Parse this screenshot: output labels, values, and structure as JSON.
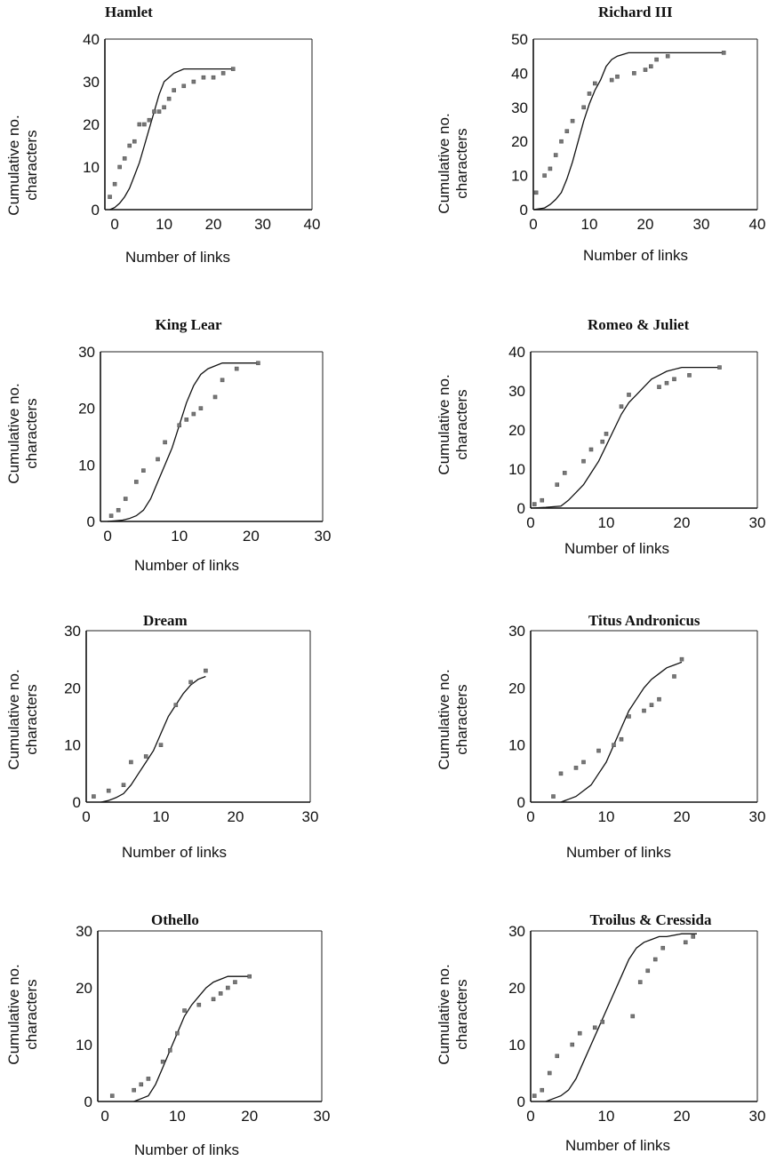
{
  "chart_data": [
    {
      "type": "scatter",
      "title": "Hamlet",
      "xlabel": "Number of links",
      "ylabel": [
        "Cumulative no.",
        "characters"
      ],
      "xlim": [
        -2,
        40
      ],
      "ylim": [
        0,
        40
      ],
      "xticks": [
        0,
        10,
        20,
        30,
        40
      ],
      "yticks": [
        0,
        10,
        20,
        30,
        40
      ],
      "series": [
        {
          "kind": "points",
          "x": [
            -1,
            0,
            1,
            2,
            3,
            4,
            5,
            6,
            7,
            8,
            9,
            10,
            11,
            12,
            14,
            16,
            18,
            20,
            22,
            24
          ],
          "y": [
            3,
            6,
            10,
            12,
            15,
            16,
            20,
            20,
            21,
            23,
            23,
            24,
            26,
            28,
            29,
            30,
            31,
            31,
            32,
            33
          ]
        },
        {
          "kind": "curve",
          "x": [
            -1,
            0,
            1,
            2,
            3,
            4,
            5,
            6,
            7,
            8,
            9,
            10,
            11,
            12,
            14,
            16,
            18,
            20,
            22,
            24
          ],
          "y": [
            0,
            0.5,
            1.5,
            3,
            5,
            8,
            11,
            15,
            19,
            23,
            27,
            30,
            31,
            32,
            33,
            33,
            33,
            33,
            33,
            33
          ]
        }
      ]
    },
    {
      "type": "scatter",
      "title": "Richard III",
      "xlabel": "Number of links",
      "ylabel": [
        "Cumulative no.",
        "characters"
      ],
      "xlim": [
        0,
        40
      ],
      "ylim": [
        0,
        50
      ],
      "xticks": [
        0,
        10,
        20,
        30,
        40
      ],
      "yticks": [
        0,
        10,
        20,
        30,
        40,
        50
      ],
      "series": [
        {
          "kind": "points",
          "x": [
            0.5,
            2,
            3,
            4,
            5,
            6,
            7,
            9,
            10,
            11,
            14,
            15,
            18,
            20,
            21,
            22,
            24,
            34
          ],
          "y": [
            5,
            10,
            12,
            16,
            20,
            23,
            26,
            30,
            34,
            37,
            38,
            39,
            40,
            41,
            42,
            44,
            45,
            46
          ]
        },
        {
          "kind": "curve",
          "x": [
            0,
            2,
            3,
            4,
            5,
            6,
            7,
            8,
            9,
            10,
            11,
            12,
            13,
            14,
            15,
            17,
            20,
            25,
            34
          ],
          "y": [
            0,
            0.5,
            1.5,
            3,
            5,
            9,
            14,
            20,
            26,
            31,
            35,
            38,
            42,
            44,
            45,
            46,
            46,
            46,
            46
          ]
        }
      ]
    },
    {
      "type": "scatter",
      "title": "King Lear",
      "xlabel": "Number of links",
      "ylabel": [
        "Cumulative no.",
        "characters"
      ],
      "xlim": [
        -1,
        30
      ],
      "ylim": [
        0,
        30
      ],
      "xticks": [
        0,
        10,
        20,
        30
      ],
      "yticks": [
        0,
        10,
        20,
        30
      ],
      "series": [
        {
          "kind": "points",
          "x": [
            0.5,
            1.5,
            2.5,
            4,
            5,
            7,
            8,
            10,
            11,
            12,
            13,
            15,
            16,
            18,
            21
          ],
          "y": [
            1,
            2,
            4,
            7,
            9,
            11,
            14,
            17,
            18,
            19,
            20,
            22,
            25,
            27,
            28
          ]
        },
        {
          "kind": "curve",
          "x": [
            0,
            2,
            3,
            4,
            5,
            6,
            7,
            8,
            9,
            10,
            11,
            12,
            13,
            14,
            15,
            16,
            18,
            20,
            21
          ],
          "y": [
            0,
            0.2,
            0.5,
            1,
            2,
            4,
            7,
            10,
            13,
            17,
            21,
            24,
            26,
            27,
            27.5,
            28,
            28,
            28,
            28
          ]
        }
      ]
    },
    {
      "type": "scatter",
      "title": "Romeo & Juliet",
      "xlabel": "Number of links",
      "ylabel": [
        "Cumulative no.",
        "characters"
      ],
      "xlim": [
        0,
        30
      ],
      "ylim": [
        0,
        40
      ],
      "xticks": [
        0,
        10,
        20,
        30
      ],
      "yticks": [
        0,
        10,
        20,
        30,
        40
      ],
      "series": [
        {
          "kind": "points",
          "x": [
            0.5,
            1.5,
            3.5,
            4.5,
            7,
            8,
            9.5,
            10,
            12,
            13,
            17,
            18,
            19,
            21,
            25
          ],
          "y": [
            1,
            2,
            6,
            9,
            12,
            15,
            17,
            19,
            26,
            29,
            31,
            32,
            33,
            34,
            36
          ]
        },
        {
          "kind": "curve",
          "x": [
            0,
            2,
            4,
            5,
            6,
            7,
            8,
            9,
            10,
            11,
            12,
            13,
            14,
            15,
            16,
            17,
            18,
            20,
            22,
            25
          ],
          "y": [
            0,
            0.2,
            0.5,
            2,
            4,
            6,
            9,
            12,
            16,
            20,
            24,
            27,
            29,
            31,
            33,
            34,
            35,
            36,
            36,
            36
          ]
        }
      ]
    },
    {
      "type": "scatter",
      "title": "Dream",
      "xlabel": "Number of links",
      "ylabel": [
        "Cumulative no.",
        "characters"
      ],
      "xlim": [
        0,
        30
      ],
      "ylim": [
        0,
        30
      ],
      "xticks": [
        0,
        10,
        20,
        30
      ],
      "yticks": [
        0,
        10,
        20,
        30
      ],
      "series": [
        {
          "kind": "points",
          "x": [
            1,
            3,
            5,
            6,
            8,
            10,
            12,
            14,
            16
          ],
          "y": [
            1,
            2,
            3,
            7,
            8,
            10,
            17,
            21,
            23
          ]
        },
        {
          "kind": "curve",
          "x": [
            2,
            3,
            4,
            5,
            6,
            7,
            8,
            9,
            10,
            11,
            12,
            13,
            14,
            15,
            16
          ],
          "y": [
            0,
            0.3,
            0.8,
            1.5,
            3,
            5,
            7,
            9,
            12,
            15,
            17,
            19,
            20.5,
            21.5,
            22
          ]
        }
      ]
    },
    {
      "type": "scatter",
      "title": "Titus Andronicus",
      "xlabel": "Number of links",
      "ylabel": [
        "Cumulative no.",
        "characters"
      ],
      "xlim": [
        0,
        30
      ],
      "ylim": [
        0,
        30
      ],
      "xticks": [
        0,
        10,
        20,
        30
      ],
      "yticks": [
        0,
        10,
        20,
        30
      ],
      "series": [
        {
          "kind": "points",
          "x": [
            3,
            4,
            6,
            7,
            9,
            11,
            12,
            13,
            15,
            16,
            17,
            19,
            20
          ],
          "y": [
            1,
            5,
            6,
            7,
            9,
            10,
            11,
            15,
            16,
            17,
            18,
            22,
            25
          ]
        },
        {
          "kind": "curve",
          "x": [
            4,
            5,
            6,
            7,
            8,
            9,
            10,
            11,
            12,
            13,
            14,
            15,
            16,
            17,
            18,
            19,
            20
          ],
          "y": [
            0,
            0.5,
            1,
            2,
            3,
            5,
            7,
            10,
            13,
            16,
            18,
            20,
            21.5,
            22.5,
            23.5,
            24,
            24.5
          ]
        }
      ]
    },
    {
      "type": "scatter",
      "title": "Othello",
      "xlabel": "Number of links",
      "ylabel": [
        "Cumulative no.",
        "characters"
      ],
      "xlim": [
        -1,
        30
      ],
      "ylim": [
        0,
        30
      ],
      "xticks": [
        0,
        10,
        20,
        30
      ],
      "yticks": [
        0,
        10,
        20,
        30
      ],
      "series": [
        {
          "kind": "points",
          "x": [
            1,
            4,
            5,
            6,
            8,
            9,
            10,
            11,
            13,
            15,
            16,
            17,
            18,
            20
          ],
          "y": [
            1,
            2,
            3,
            4,
            7,
            9,
            12,
            16,
            17,
            18,
            19,
            20,
            21,
            22
          ]
        },
        {
          "kind": "curve",
          "x": [
            4,
            5,
            6,
            7,
            8,
            9,
            10,
            11,
            12,
            13,
            14,
            15,
            16,
            17,
            18,
            19,
            20
          ],
          "y": [
            0,
            0.5,
            1,
            3,
            6,
            9,
            12,
            15,
            17,
            18.5,
            20,
            21,
            21.5,
            22,
            22,
            22,
            22
          ]
        }
      ]
    },
    {
      "type": "scatter",
      "title": "Troilus & Cressida",
      "xlabel": "Number of links",
      "ylabel": [
        "Cumulative no.",
        "characters"
      ],
      "xlim": [
        0,
        30
      ],
      "ylim": [
        0,
        30
      ],
      "xticks": [
        0,
        10,
        20,
        30
      ],
      "yticks": [
        0,
        10,
        20,
        30
      ],
      "series": [
        {
          "kind": "points",
          "x": [
            0.5,
            1.5,
            2.5,
            3.5,
            5.5,
            6.5,
            8.5,
            9.5,
            13.5,
            14.5,
            15.5,
            16.5,
            17.5,
            20.5,
            21.5
          ],
          "y": [
            1,
            2,
            5,
            8,
            10,
            12,
            13,
            14,
            15,
            21,
            23,
            25,
            27,
            28,
            29
          ]
        },
        {
          "kind": "curve",
          "x": [
            2,
            3,
            4,
            5,
            6,
            7,
            8,
            9,
            10,
            11,
            12,
            13,
            14,
            15,
            16,
            17,
            18,
            20,
            22
          ],
          "y": [
            0,
            0.5,
            1,
            2,
            4,
            7,
            10,
            13,
            16,
            19,
            22,
            25,
            27,
            28,
            28.5,
            29,
            29,
            29.5,
            29.5
          ]
        }
      ]
    }
  ]
}
